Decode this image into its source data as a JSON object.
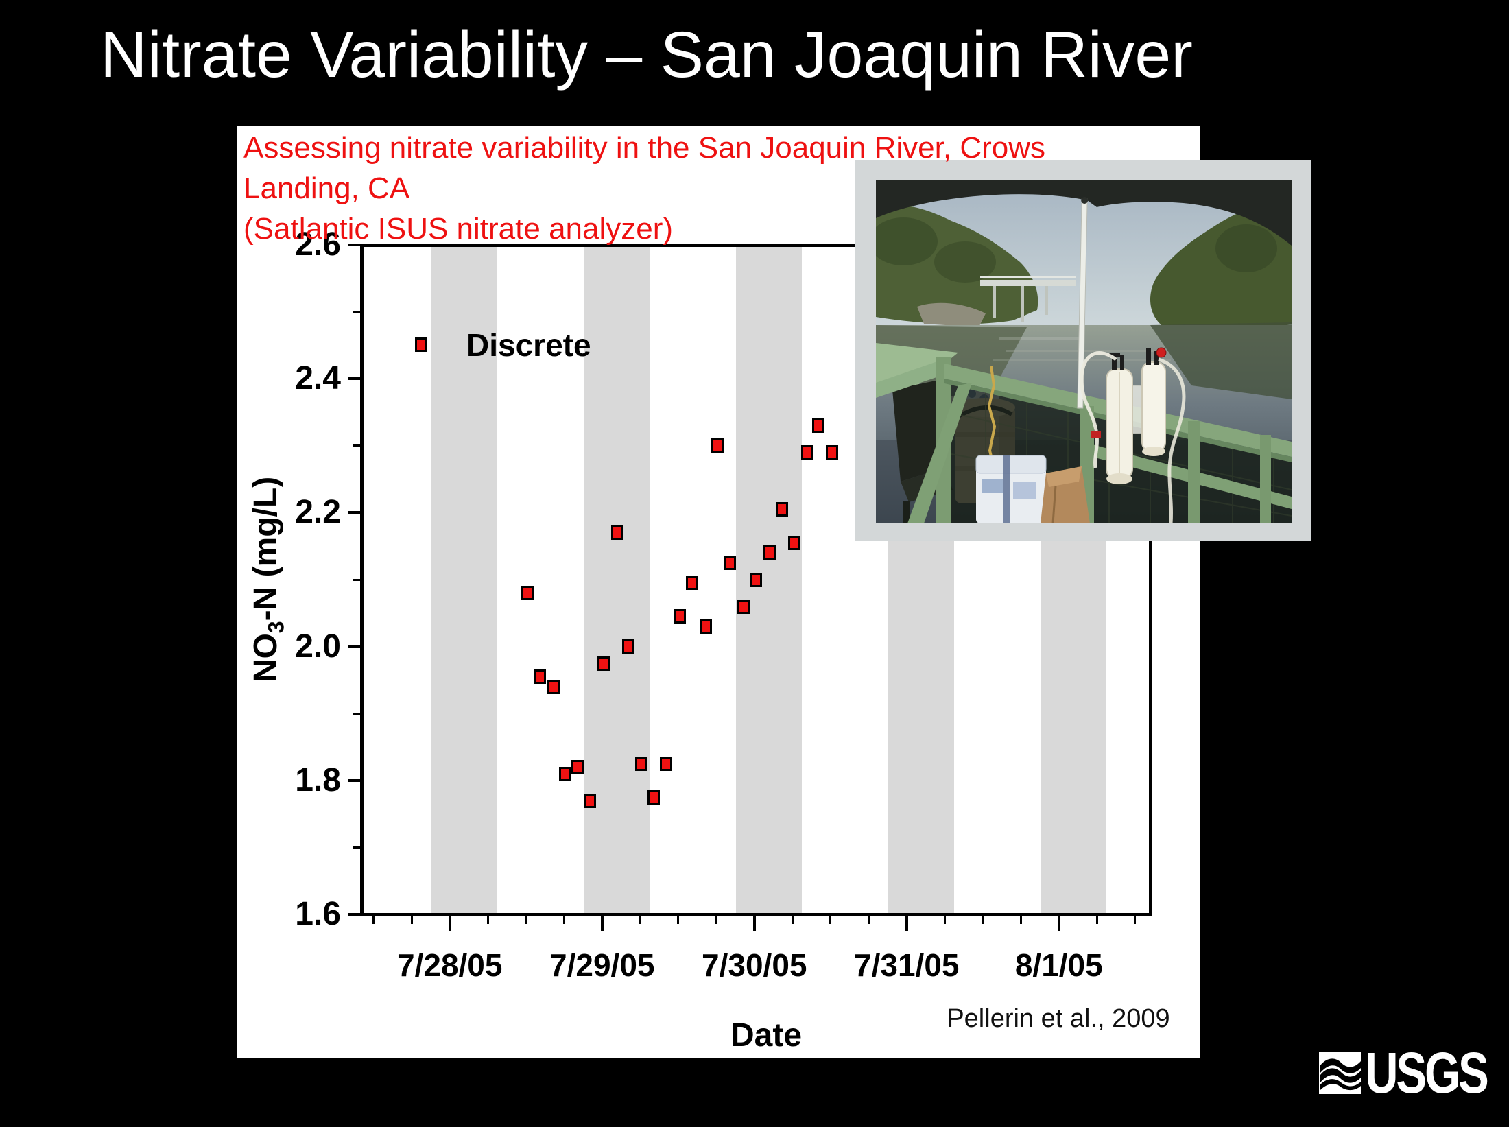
{
  "theme": {
    "note_red": "#ee1111",
    "marker_red": "#f01212",
    "band_gray": "#d9d9d9",
    "frame_gray": "#d3d7d8"
  },
  "slide": {
    "title": "Nitrate Variability – San Joaquin River"
  },
  "note": {
    "lines": [
      "Assessing nitrate variability in the San Joaquin River, Crows",
      "Landing, CA",
      "(Satlantic ISUS nitrate analyzer)"
    ]
  },
  "citation": "Pellerin et al., 2009",
  "logo": {
    "text": "USGS"
  },
  "chart_data": {
    "type": "scatter",
    "title": "",
    "xlabel": "Date",
    "ylabel": {
      "pre": "NO",
      "sub": "3",
      "post": "-N (mg/L)"
    },
    "legend": {
      "label": "Discrete",
      "marker": "red-square",
      "position": "upper-left-inside"
    },
    "grid": false,
    "x_tick_labels": [
      "7/28/05",
      "7/29/05",
      "7/30/05",
      "7/31/05",
      "8/1/05"
    ],
    "x_tick_days": [
      0,
      1,
      2,
      3,
      4
    ],
    "x_minor_step_days": 0.25,
    "x_domain_days": [
      -0.58,
      4.6
    ],
    "ylim": [
      1.6,
      2.6
    ],
    "y_major_ticks": [
      1.6,
      1.8,
      2.0,
      2.2,
      2.4,
      2.6
    ],
    "y_minor_ticks": [
      1.7,
      1.9,
      2.1,
      2.3,
      2.5
    ],
    "night_bands_days": [
      [
        -0.12,
        0.31
      ],
      [
        0.88,
        1.31
      ],
      [
        1.88,
        2.31
      ],
      [
        2.88,
        3.31
      ],
      [
        3.88,
        4.31
      ]
    ],
    "points_day_value": [
      [
        0.51,
        2.08
      ],
      [
        0.59,
        1.955
      ],
      [
        0.68,
        1.94
      ],
      [
        0.76,
        1.81
      ],
      [
        0.84,
        1.82
      ],
      [
        0.92,
        1.77
      ],
      [
        1.01,
        1.975
      ],
      [
        1.1,
        2.17
      ],
      [
        1.17,
        2.0
      ],
      [
        1.26,
        1.825
      ],
      [
        1.34,
        1.775
      ],
      [
        1.42,
        1.825
      ],
      [
        1.51,
        2.045
      ],
      [
        1.59,
        2.095
      ],
      [
        1.68,
        2.03
      ],
      [
        1.76,
        2.3
      ],
      [
        1.84,
        2.125
      ],
      [
        1.93,
        2.06
      ],
      [
        2.01,
        2.1
      ],
      [
        2.1,
        2.14
      ],
      [
        2.18,
        2.205
      ],
      [
        2.26,
        2.155
      ],
      [
        2.35,
        2.29
      ],
      [
        2.42,
        2.33
      ],
      [
        2.51,
        2.29
      ]
    ]
  }
}
